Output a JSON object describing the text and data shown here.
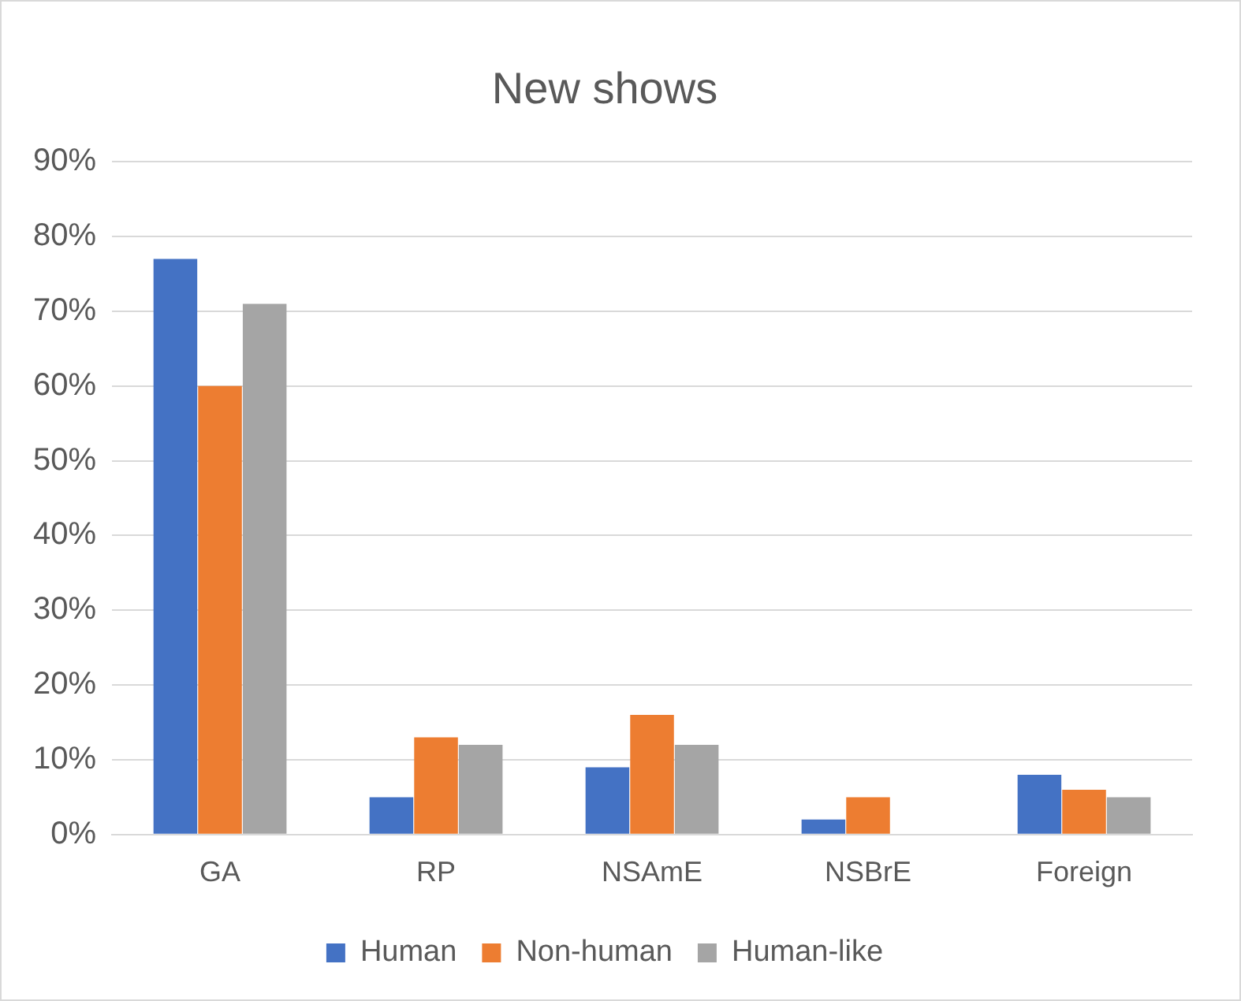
{
  "chart_data": {
    "type": "bar",
    "title": "New shows",
    "categories": [
      "GA",
      "RP",
      "NSAmE",
      "NSBrE",
      "Foreign"
    ],
    "series": [
      {
        "name": "Human",
        "color": "#4472c4",
        "values": [
          77,
          5,
          9,
          2,
          8
        ]
      },
      {
        "name": "Non-human",
        "color": "#ed7d31",
        "values": [
          60,
          13,
          16,
          5,
          6
        ]
      },
      {
        "name": "Human-like",
        "color": "#a5a5a5",
        "values": [
          71,
          12,
          12,
          0,
          5
        ]
      }
    ],
    "ylim": [
      0,
      90
    ],
    "yticks": [
      {
        "value": 0,
        "label": "0%"
      },
      {
        "value": 10,
        "label": "10%"
      },
      {
        "value": 20,
        "label": "20%"
      },
      {
        "value": 30,
        "label": "30%"
      },
      {
        "value": 40,
        "label": "40%"
      },
      {
        "value": 50,
        "label": "50%"
      },
      {
        "value": 60,
        "label": "60%"
      },
      {
        "value": 70,
        "label": "70%"
      },
      {
        "value": 80,
        "label": "80%"
      },
      {
        "value": 90,
        "label": "90%"
      }
    ],
    "grid": "y",
    "legend": "bottom"
  }
}
